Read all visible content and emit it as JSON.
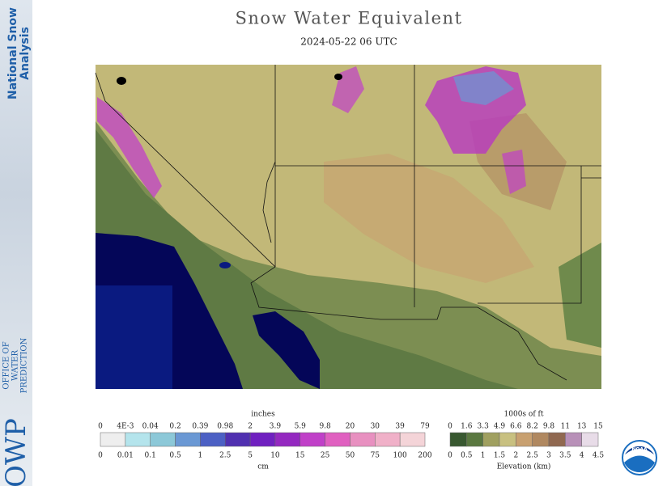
{
  "header": {
    "title": "Snow Water Equivalent",
    "subtitle": "2024-05-22 06 UTC"
  },
  "sidebar": {
    "product": [
      "National Snow",
      "Analysis"
    ],
    "agency_abbr": "OWP",
    "agency": [
      "OFFICE OF",
      "WATER",
      "PREDICTION"
    ]
  },
  "legend_swe": {
    "top_title": "inches",
    "top_labels": [
      "0",
      "4E-3",
      "0.04",
      "0.2",
      "0.39",
      "0.98",
      "2",
      "3.9",
      "5.9",
      "9.8",
      "20",
      "30",
      "39",
      "79"
    ],
    "bottom_labels": [
      "0",
      "0.01",
      "0.1",
      "0.5",
      "1",
      "2.5",
      "5",
      "10",
      "15",
      "25",
      "50",
      "75",
      "100",
      "200"
    ],
    "bottom_title": "cm",
    "colors": [
      "#eeeeee",
      "#b4e4ec",
      "#8cc8d8",
      "#6a98d4",
      "#4c60c4",
      "#5030b0",
      "#7020c0",
      "#9428c0",
      "#c040c8",
      "#e060c0",
      "#e890c0",
      "#f0b0c8",
      "#f4d4d8"
    ]
  },
  "legend_elevation": {
    "top_title": "1000s of ft",
    "top_labels": [
      "0",
      "1.6",
      "3.3",
      "4.9",
      "6.6",
      "8.2",
      "9.8",
      "11",
      "13",
      "15"
    ],
    "bottom_labels": [
      "0",
      "0.5",
      "1",
      "1.5",
      "2",
      "2.5",
      "3",
      "3.5",
      "4",
      "4.5"
    ],
    "bottom_title": "Elevation (km)",
    "colors": [
      "#385830",
      "#5a7840",
      "#a0a060",
      "#c8c080",
      "#c8a070",
      "#b08860",
      "#906850",
      "#b890b8",
      "#e8dce8"
    ]
  },
  "logo": "NOAA"
}
